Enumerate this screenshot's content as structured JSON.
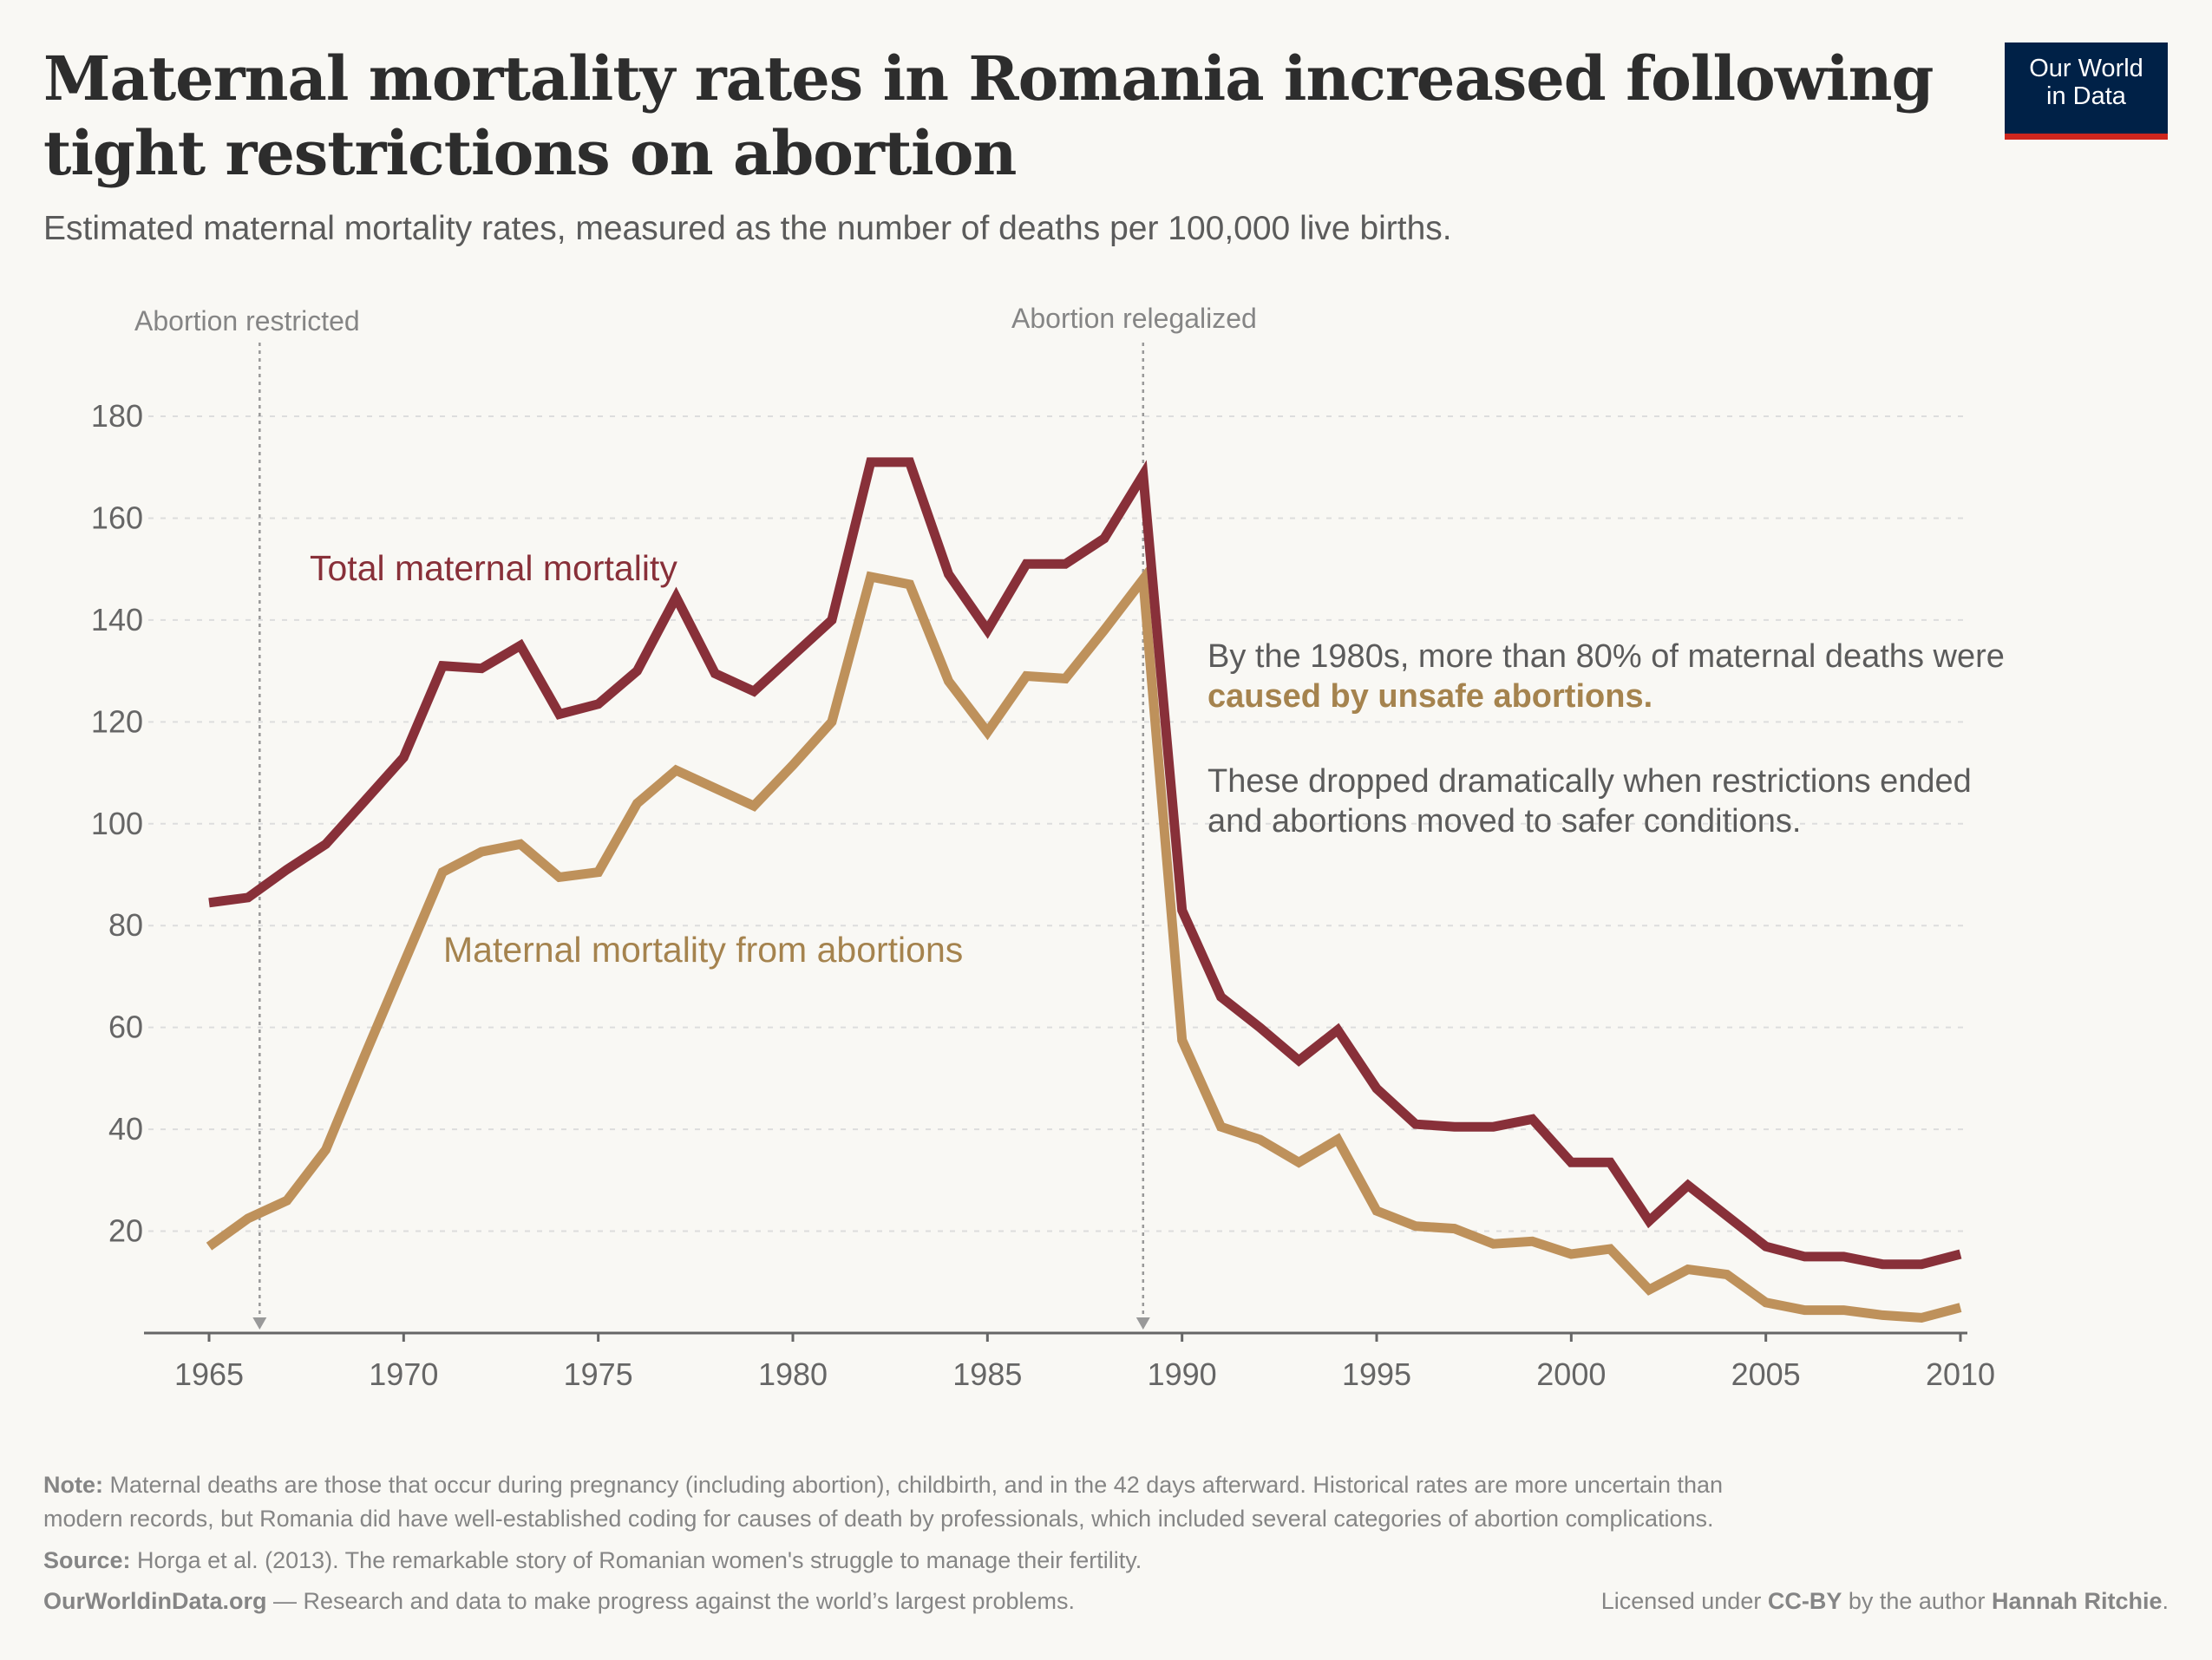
{
  "header": {
    "title": "Maternal mortality rates in Romania increased following tight restrictions on abortion",
    "subtitle": "Estimated maternal mortality rates, measured as the number of deaths per 100,000 live births.",
    "logo_line1": "Our World",
    "logo_line2": "in Data"
  },
  "annotations": {
    "restricted": "Abortion restricted",
    "relegalized": "Abortion relegalized",
    "text1_part1": "By the 1980s, more than 80% of maternal deaths were",
    "text1_part2": "caused by unsafe abortions.",
    "text2_line1": "These dropped dramatically when restrictions ended",
    "text2_line2": "and abortions moved to safer conditions."
  },
  "footer": {
    "note_label": "Note:",
    "note_line1": "Maternal deaths are those that occur during pregnancy (including abortion), childbirth, and in the 42 days afterward. Historical rates are more uncertain than",
    "note_line2": "modern records, but Romania did have well-established coding for causes of death by professionals, which included several categories of abortion complications.",
    "source_label": "Source:",
    "source": "Horga et al. (2013). The remarkable story of Romanian women's struggle to manage their fertility.",
    "site": "OurWorldinData.org",
    "tagline": " — Research and data to make progress against the world’s largest problems.",
    "license_prefix": "Licensed under ",
    "license": "CC-BY",
    "license_mid": " by the author ",
    "author": "Hannah Ritchie",
    "license_end": "."
  },
  "chart_data": {
    "type": "line",
    "title": "Maternal mortality rates in Romania increased following tight restrictions on abortion",
    "xlabel": "",
    "ylabel": "",
    "xlim": [
      1965,
      2010
    ],
    "ylim": [
      0,
      180
    ],
    "grid": true,
    "x_ticks": [
      "1965",
      "1970",
      "1975",
      "1980",
      "1985",
      "1990",
      "1995",
      "2000",
      "2005",
      "2010"
    ],
    "y_ticks": [
      "20",
      "40",
      "60",
      "80",
      "100",
      "120",
      "140",
      "160",
      "180"
    ],
    "events": [
      {
        "year": 1966.3,
        "label": "Abortion restricted"
      },
      {
        "year": 1989,
        "label": "Abortion relegalized"
      }
    ],
    "x": [
      1965,
      1966,
      1967,
      1968,
      1969,
      1970,
      1971,
      1972,
      1973,
      1974,
      1975,
      1976,
      1977,
      1978,
      1979,
      1980,
      1981,
      1982,
      1983,
      1984,
      1985,
      1986,
      1987,
      1988,
      1989,
      1990,
      1991,
      1992,
      1993,
      1994,
      1995,
      1996,
      1997,
      1998,
      1999,
      2000,
      2001,
      2002,
      2003,
      2004,
      2005,
      2006,
      2007,
      2008,
      2009,
      2010
    ],
    "series": [
      {
        "name": "Total maternal mortality",
        "color": "#883039",
        "values": [
          84.5,
          85.5,
          91,
          96,
          104.5,
          113,
          131,
          130.5,
          135,
          121.5,
          123.5,
          130,
          144.5,
          129.5,
          126,
          133,
          140,
          171,
          171,
          149,
          138,
          151,
          151,
          156,
          168.5,
          83,
          66,
          60,
          53.5,
          59.5,
          48,
          41,
          40.5,
          40.5,
          42,
          33.5,
          33.5,
          22,
          29,
          23,
          17,
          15,
          15,
          13.5,
          13.5,
          15.5
        ]
      },
      {
        "name": "Maternal mortality from abortions",
        "color": "#be915b",
        "values": [
          17,
          22.5,
          26,
          36,
          54.5,
          72.5,
          90.5,
          94.5,
          96,
          89.5,
          90.5,
          104,
          110.5,
          107,
          103.5,
          111.5,
          120,
          148.5,
          147,
          128,
          118,
          129,
          128.5,
          138,
          148,
          57.5,
          40.5,
          38,
          33.5,
          38,
          24,
          21,
          20.5,
          17.5,
          18,
          15.5,
          16.5,
          8.5,
          12.5,
          11.5,
          6,
          4.5,
          4.5,
          3.5,
          3,
          5
        ]
      }
    ]
  }
}
